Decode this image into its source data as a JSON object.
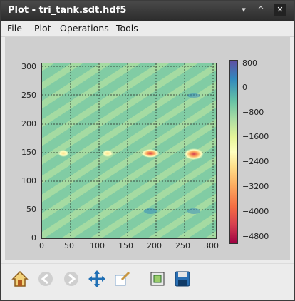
{
  "window": {
    "title": "Plot - tri_tank.sdt.hdf5"
  },
  "menu": [
    "File",
    "Plot",
    "Operations",
    "Tools"
  ],
  "plot": {
    "x_ticks": [
      "0",
      "50",
      "100",
      "150",
      "200",
      "250",
      "300"
    ],
    "y_ticks": [
      "300",
      "250",
      "200",
      "150",
      "100",
      "50",
      "0"
    ]
  },
  "colorbar": {
    "ticks": [
      "800",
      "0",
      "−800",
      "−1600",
      "−2400",
      "−3200",
      "−4000",
      "−4800"
    ]
  },
  "chart_data": {
    "type": "heatmap",
    "title": "",
    "xlabel": "",
    "ylabel": "",
    "xlim": [
      0,
      310
    ],
    "ylim": [
      0,
      310
    ],
    "colorbar_range": [
      -4800,
      800
    ],
    "colormap": "Spectral",
    "hotspots": [
      {
        "x": 38,
        "y": 150,
        "value": -2200
      },
      {
        "x": 117,
        "y": 150,
        "value": -2000
      },
      {
        "x": 193,
        "y": 150,
        "value": -3600
      },
      {
        "x": 270,
        "y": 150,
        "value": -4600
      }
    ]
  },
  "toolbar": {
    "icons": [
      "home-icon",
      "back-icon",
      "forward-icon",
      "pan-icon",
      "configure-subplots-icon",
      "zoom-rect-icon",
      "save-icon"
    ]
  }
}
